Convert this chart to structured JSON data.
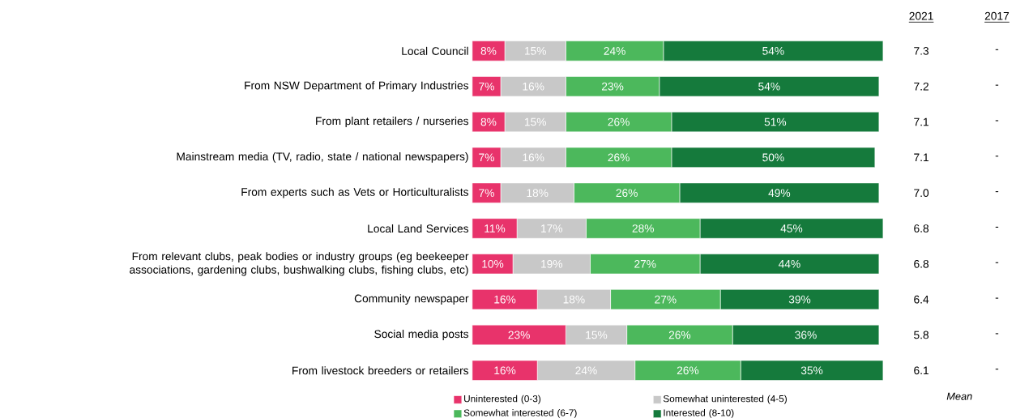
{
  "chart_data": {
    "type": "bar",
    "orientation": "horizontal",
    "stacked": true,
    "tick_labels": "y",
    "legend": "bottom",
    "categories": [
      "Local Council",
      "From NSW Department of Primary Industries",
      "From plant retailers / nurseries",
      "Mainstream media (TV, radio, state / national newspapers)",
      "From experts such as Vets or Horticulturalists",
      "Local Land Services",
      "From relevant clubs, peak bodies or industry groups (eg beekeeper associations, gardening clubs, bushwalking clubs, fishing clubs, etc)",
      "Community newspaper",
      "Social media posts",
      "From livestock breeders or retailers"
    ],
    "series": [
      {
        "name": "Uninterested (0-3)",
        "color": "#e8336b",
        "values": [
          8,
          7,
          8,
          7,
          7,
          11,
          10,
          16,
          23,
          16
        ],
        "value_labels": [
          "8%",
          "7%",
          "8%",
          "7%",
          "7%",
          "11%",
          "10%",
          "16%",
          "23%",
          "16%"
        ]
      },
      {
        "name": "Somewhat uninterested (4-5)",
        "color": "#c8c8c8",
        "values": [
          15,
          16,
          15,
          16,
          18,
          17,
          19,
          18,
          15,
          24
        ],
        "value_labels": [
          "15%",
          "16%",
          "15%",
          "16%",
          "18%",
          "17%",
          "19%",
          "18%",
          "15%",
          "24%"
        ]
      },
      {
        "name": "Somewhat interested (6-7)",
        "color": "#4cb85c",
        "values": [
          24,
          23,
          26,
          26,
          26,
          28,
          27,
          27,
          26,
          26
        ],
        "value_labels": [
          "24%",
          "23%",
          "26%",
          "26%",
          "26%",
          "28%",
          "27%",
          "27%",
          "26%",
          "26%"
        ]
      },
      {
        "name": "Interested (8-10)",
        "color": "#157a3c",
        "values": [
          54,
          54,
          51,
          50,
          49,
          45,
          44,
          39,
          36,
          35
        ],
        "value_labels": [
          "54%",
          "54%",
          "51%",
          "50%",
          "49%",
          "45%",
          "44%",
          "39%",
          "36%",
          "35%"
        ]
      }
    ],
    "annotations": [
      "2021",
      "2017",
      "Mean",
      "7.3",
      "-",
      "7.2",
      "-",
      "7.1",
      "-",
      "7.1",
      "-",
      "7.0",
      "-",
      "6.8",
      "-",
      "6.8",
      "-",
      "6.4",
      "-",
      "5.8",
      "-",
      "6.1",
      "-"
    ]
  }
}
